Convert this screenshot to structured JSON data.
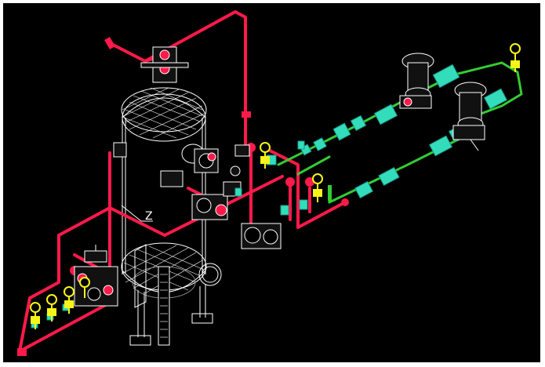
{
  "canvas": {
    "background": "#000000",
    "frame": "#ffffff"
  },
  "colors": {
    "pipe_red": "#ff1a4a",
    "pipe_green": "#33cc33",
    "valve_cyan": "#33ddbb",
    "gauge_yellow": "#f5f51a",
    "vessel_white": "#ffffff",
    "dark_gray": "#555555"
  },
  "labels": {
    "axis_z": "Z"
  }
}
